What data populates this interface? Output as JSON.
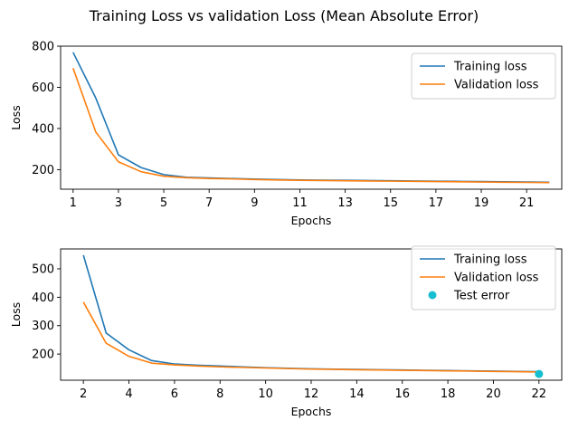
{
  "figure": {
    "title": "Training Loss vs validation Loss (Mean Absolute Error)"
  },
  "colors": {
    "training": "#1f77b4",
    "validation": "#ff7f0e",
    "test": "#17becf"
  },
  "chart_data": [
    {
      "type": "line",
      "xlabel": "Epochs",
      "ylabel": "Loss",
      "xlim": [
        0.45,
        22.55
      ],
      "ylim": [
        105,
        800
      ],
      "xticks": [
        1,
        3,
        5,
        7,
        9,
        11,
        13,
        15,
        17,
        19,
        21
      ],
      "yticks": [
        200,
        400,
        600,
        800
      ],
      "legend_position": "top-right",
      "series": [
        {
          "name": "Training loss",
          "color_key": "training",
          "x": [
            1,
            2,
            3,
            4,
            5,
            6,
            7,
            8,
            9,
            10,
            11,
            12,
            13,
            14,
            15,
            16,
            17,
            18,
            19,
            20,
            21,
            22
          ],
          "values": [
            770,
            548,
            272,
            210,
            176,
            163,
            160,
            157,
            154,
            152,
            150,
            149,
            148,
            147,
            146,
            145,
            144,
            143,
            142,
            141,
            140,
            139
          ]
        },
        {
          "name": "Validation loss",
          "color_key": "validation",
          "x": [
            1,
            2,
            3,
            4,
            5,
            6,
            7,
            8,
            9,
            10,
            11,
            12,
            13,
            14,
            15,
            16,
            17,
            18,
            19,
            20,
            21,
            22
          ],
          "values": [
            693,
            383,
            238,
            190,
            168,
            161,
            157,
            155,
            152,
            150,
            148,
            147,
            146,
            145,
            144,
            143,
            142,
            141,
            140,
            139,
            138,
            137
          ]
        }
      ]
    },
    {
      "type": "line",
      "xlabel": "Epochs",
      "ylabel": "Loss",
      "xlim": [
        1.0,
        23.0
      ],
      "ylim": [
        108,
        570
      ],
      "xticks": [
        2,
        4,
        6,
        8,
        10,
        12,
        14,
        16,
        18,
        20,
        22
      ],
      "yticks": [
        200,
        300,
        400,
        500
      ],
      "legend_position": "top-right",
      "series": [
        {
          "name": "Training loss",
          "color_key": "training",
          "x": [
            2,
            3,
            4,
            5,
            6,
            7,
            8,
            9,
            10,
            11,
            12,
            13,
            14,
            15,
            16,
            17,
            18,
            19,
            20,
            21,
            22
          ],
          "values": [
            548,
            274,
            215,
            177,
            165,
            161,
            158,
            155,
            152,
            150,
            148,
            147,
            146,
            145,
            144,
            143,
            142,
            141,
            140,
            139,
            138
          ]
        },
        {
          "name": "Validation loss",
          "color_key": "validation",
          "x": [
            2,
            3,
            4,
            5,
            6,
            7,
            8,
            9,
            10,
            11,
            12,
            13,
            14,
            15,
            16,
            17,
            18,
            19,
            20,
            21,
            22
          ],
          "values": [
            383,
            238,
            192,
            168,
            162,
            158,
            155,
            153,
            151,
            149,
            147,
            146,
            145,
            144,
            143,
            142,
            141,
            140,
            139,
            138,
            137
          ]
        }
      ],
      "scatter": [
        {
          "name": "Test error",
          "color_key": "test",
          "x": [
            22
          ],
          "values": [
            130
          ]
        }
      ]
    }
  ]
}
